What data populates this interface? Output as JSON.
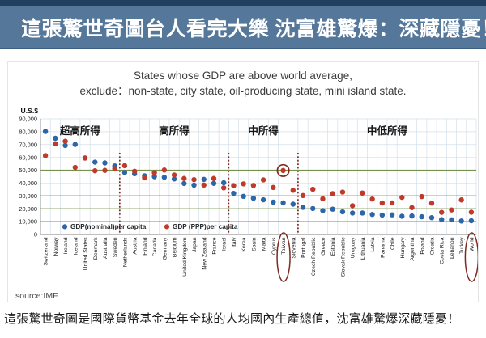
{
  "page": {
    "top_title": "這張驚世奇圖台人看完大樂 沈富雄驚爆：深藏隱憂！",
    "caption": "這張驚世奇圖是國際貨幣基金去年全球的人均國內生產總值，沈富雄驚爆深藏隱憂！",
    "colors": {
      "title_bar_bg": "#55789a",
      "title_bar_border": "#20405f",
      "title_text": "#ffffff"
    }
  },
  "chart": {
    "title_line1": "States whose GDP are above world average,",
    "title_line2": "exclude：non-state, city state, oil-producing state, mini island state.",
    "source": "source:IMF",
    "regions": [
      {
        "label": "超高所得",
        "start": 0,
        "end": 8
      },
      {
        "label": "高所得",
        "start": 8,
        "end": 19
      },
      {
        "label": "中所得",
        "start": 19,
        "end": 26
      },
      {
        "label": "中低所得",
        "start": 26,
        "end": 44
      }
    ],
    "colors": {
      "nominal": "#2b66a8",
      "ppp": "#bf3a2a",
      "threshold_line": "#76924c",
      "grid": "#d3dfea",
      "annotation": "#7e2a1f",
      "axis": "#8f989f"
    },
    "annotations": {
      "circled_point": {
        "category": "Taiwan",
        "series": "GDP (PPP)per capita",
        "series_index": 1
      },
      "circled_labels": [
        "Taiwan",
        "World"
      ]
    }
  },
  "chart_data": {
    "type": "scatter",
    "title": "States whose GDP are above world average, exclude：non-state, city state, oil-producing state, mini island state.",
    "xlabel": "",
    "ylabel": "U.S.$",
    "ylim": [
      0,
      90000
    ],
    "ytick_step": 10000,
    "threshold_lines": [
      50000,
      30000,
      20000,
      10000
    ],
    "grid": true,
    "legend_position": "bottom-inside",
    "categories": [
      "Switzerland",
      "Norway",
      "Ireland",
      "Iceland",
      "United States",
      "Denmark",
      "Australia",
      "Sweden",
      "Netherlands",
      "Austria",
      "Finland",
      "Canada",
      "Germany",
      "Belgium",
      "United Kingdom",
      "Japan",
      "New Zealand",
      "France",
      "Israel",
      "Italy",
      "Korea",
      "Spain",
      "Malta",
      "Cyprus",
      "Taiwan",
      "Slovenia",
      "Portugal",
      "Czech Republic",
      "Greece",
      "Estonia",
      "Slovak Republic",
      "Uruguay",
      "Lithuania",
      "Latvia",
      "Panama",
      "Chile",
      "Hungary",
      "Argentina",
      "Poland",
      "Croatia",
      "Costa Rica",
      "Lebanon",
      "Turkey",
      "World"
    ],
    "series": [
      {
        "name": "GDP(nominal)per capita",
        "color": "#2b66a8",
        "values": [
          80200,
          74900,
          69300,
          70100,
          59500,
          56300,
          55700,
          53400,
          48200,
          47300,
          45700,
          45000,
          44500,
          43200,
          39700,
          38400,
          42900,
          39800,
          40300,
          32000,
          29700,
          28200,
          27000,
          25200,
          24600,
          23600,
          21100,
          20200,
          18600,
          19700,
          17600,
          16700,
          16700,
          15600,
          15100,
          15300,
          14200,
          14400,
          13800,
          13100,
          11600,
          11400,
          10500,
          10700
        ]
      },
      {
        "name": "GDP (PPP)per capita",
        "color": "#bf3a2a",
        "values": [
          61400,
          70600,
          72600,
          52200,
          59500,
          49600,
          49900,
          51300,
          53600,
          49200,
          44100,
          48100,
          50200,
          46300,
          43600,
          42700,
          38500,
          43600,
          36300,
          38000,
          39400,
          38200,
          42500,
          36600,
          49800,
          34400,
          30300,
          35200,
          27800,
          31800,
          33000,
          22400,
          32300,
          27600,
          24500,
          24600,
          28900,
          20900,
          29500,
          24400,
          17200,
          19100,
          26900,
          17300
        ]
      }
    ]
  }
}
